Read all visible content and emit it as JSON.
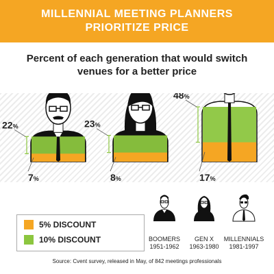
{
  "header": {
    "title_line1": "MILLENNIAL MEETING PLANNERS",
    "title_line2": "PRIORITIZE PRICE"
  },
  "subtitle_line1": "Percent of each generation that would switch",
  "subtitle_line2": "venues for a better price",
  "colors": {
    "banner": "#f5a623",
    "orange": "#f5a623",
    "green": "#8cc63f"
  },
  "chart_data": {
    "type": "bar",
    "title": "Percent of each generation that would switch venues for a better price",
    "categories": [
      "Boomers",
      "Gen X",
      "Millennials"
    ],
    "series": [
      {
        "name": "5% DISCOUNT",
        "color": "#f5a623",
        "values": [
          7,
          8,
          17
        ]
      },
      {
        "name": "10% DISCOUNT",
        "color": "#8cc63f",
        "values": [
          22,
          23,
          48
        ]
      }
    ],
    "value_labels": {
      "five": [
        "7%",
        "8%",
        "17%"
      ],
      "ten": [
        "22%",
        "23%",
        "48%"
      ]
    },
    "ylim": [
      0,
      60
    ]
  },
  "legend": {
    "items": [
      {
        "label": "5% DISCOUNT",
        "color": "#f5a623"
      },
      {
        "label": "10% DISCOUNT",
        "color": "#8cc63f"
      }
    ]
  },
  "generations": [
    {
      "name": "BOOMERS",
      "years": "1951-1962"
    },
    {
      "name": "GEN X",
      "years": "1963-1980"
    },
    {
      "name": "MILLENNIALS",
      "years": "1981-1997"
    }
  ],
  "source": "Source: Cvent survey, released in May, of 842 meetings professionals"
}
